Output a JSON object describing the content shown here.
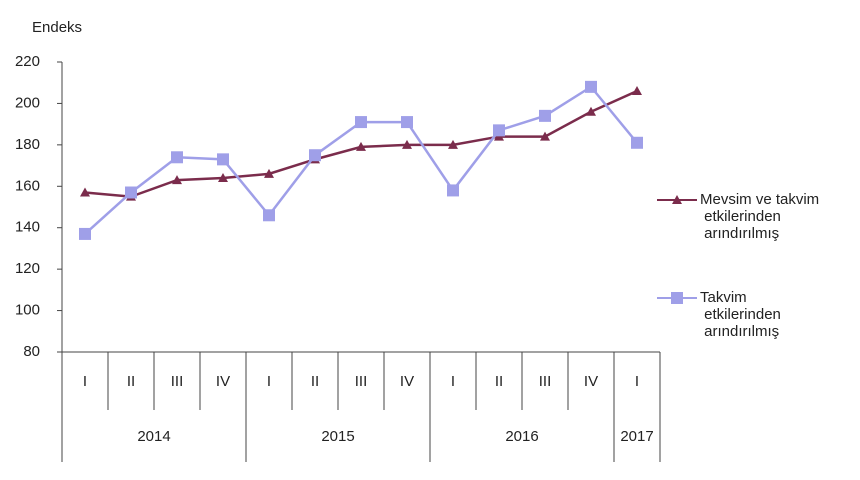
{
  "chart_data": {
    "type": "line",
    "y_label": "Endeks",
    "categories": [
      "I",
      "II",
      "III",
      "IV",
      "I",
      "II",
      "III",
      "IV",
      "I",
      "II",
      "III",
      "IV",
      "I"
    ],
    "year_groups": [
      "2014",
      "2015",
      "2016",
      "2017"
    ],
    "series": [
      {
        "name": "Mevsim ve takvim etkilerinden arındırılmış",
        "color": "#7b2c4c",
        "marker": "triangle",
        "values": [
          157,
          155,
          163,
          164,
          166,
          173,
          179,
          180,
          180,
          184,
          184,
          196,
          206
        ]
      },
      {
        "name": "Takvim etkilerinden arındırılmış",
        "color": "#9f9fe8",
        "marker": "square",
        "values": [
          137,
          157,
          174,
          173,
          146,
          175,
          191,
          191,
          158,
          187,
          194,
          208,
          181
        ]
      }
    ],
    "ylim": [
      80,
      220
    ],
    "yticks": [
      80,
      100,
      120,
      140,
      160,
      180,
      200,
      220
    ],
    "grid": false,
    "legend": "right"
  }
}
